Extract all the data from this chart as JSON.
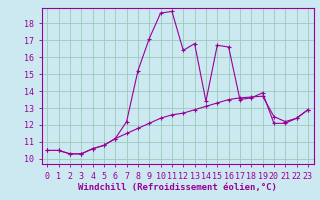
{
  "xlabel": "Windchill (Refroidissement éolien,°C)",
  "bg_color": "#cce8f0",
  "grid_color": "#99ccbb",
  "line_color": "#990099",
  "plot_bg": "#cce8f0",
  "xlim": [
    -0.5,
    23.5
  ],
  "ylim": [
    9.7,
    18.9
  ],
  "xticks": [
    0,
    1,
    2,
    3,
    4,
    5,
    6,
    7,
    8,
    9,
    10,
    11,
    12,
    13,
    14,
    15,
    16,
    17,
    18,
    19,
    20,
    21,
    22,
    23
  ],
  "yticks": [
    10,
    11,
    12,
    13,
    14,
    15,
    16,
    17,
    18
  ],
  "line1_x": [
    0,
    1,
    2,
    3,
    4,
    5,
    6,
    7,
    8,
    9,
    10,
    11,
    12,
    13,
    14,
    15,
    16,
    17,
    18,
    19,
    20,
    21,
    22,
    23
  ],
  "line1_y": [
    10.5,
    10.5,
    10.3,
    10.3,
    10.6,
    10.8,
    11.2,
    12.2,
    15.2,
    17.1,
    18.6,
    18.7,
    16.4,
    16.8,
    13.4,
    16.7,
    16.6,
    13.5,
    13.6,
    13.9,
    12.1,
    12.1,
    12.4,
    12.9
  ],
  "line2_x": [
    0,
    1,
    2,
    3,
    4,
    5,
    6,
    7,
    8,
    9,
    10,
    11,
    12,
    13,
    14,
    15,
    16,
    17,
    18,
    19,
    20,
    21,
    22,
    23
  ],
  "line2_y": [
    10.5,
    10.5,
    10.3,
    10.3,
    10.6,
    10.8,
    11.2,
    11.5,
    11.8,
    12.1,
    12.4,
    12.6,
    12.7,
    12.9,
    13.1,
    13.3,
    13.5,
    13.6,
    13.65,
    13.7,
    12.5,
    12.2,
    12.4,
    12.9
  ],
  "xlabel_fontsize": 6.5,
  "tick_fontsize": 6,
  "marker": "+"
}
